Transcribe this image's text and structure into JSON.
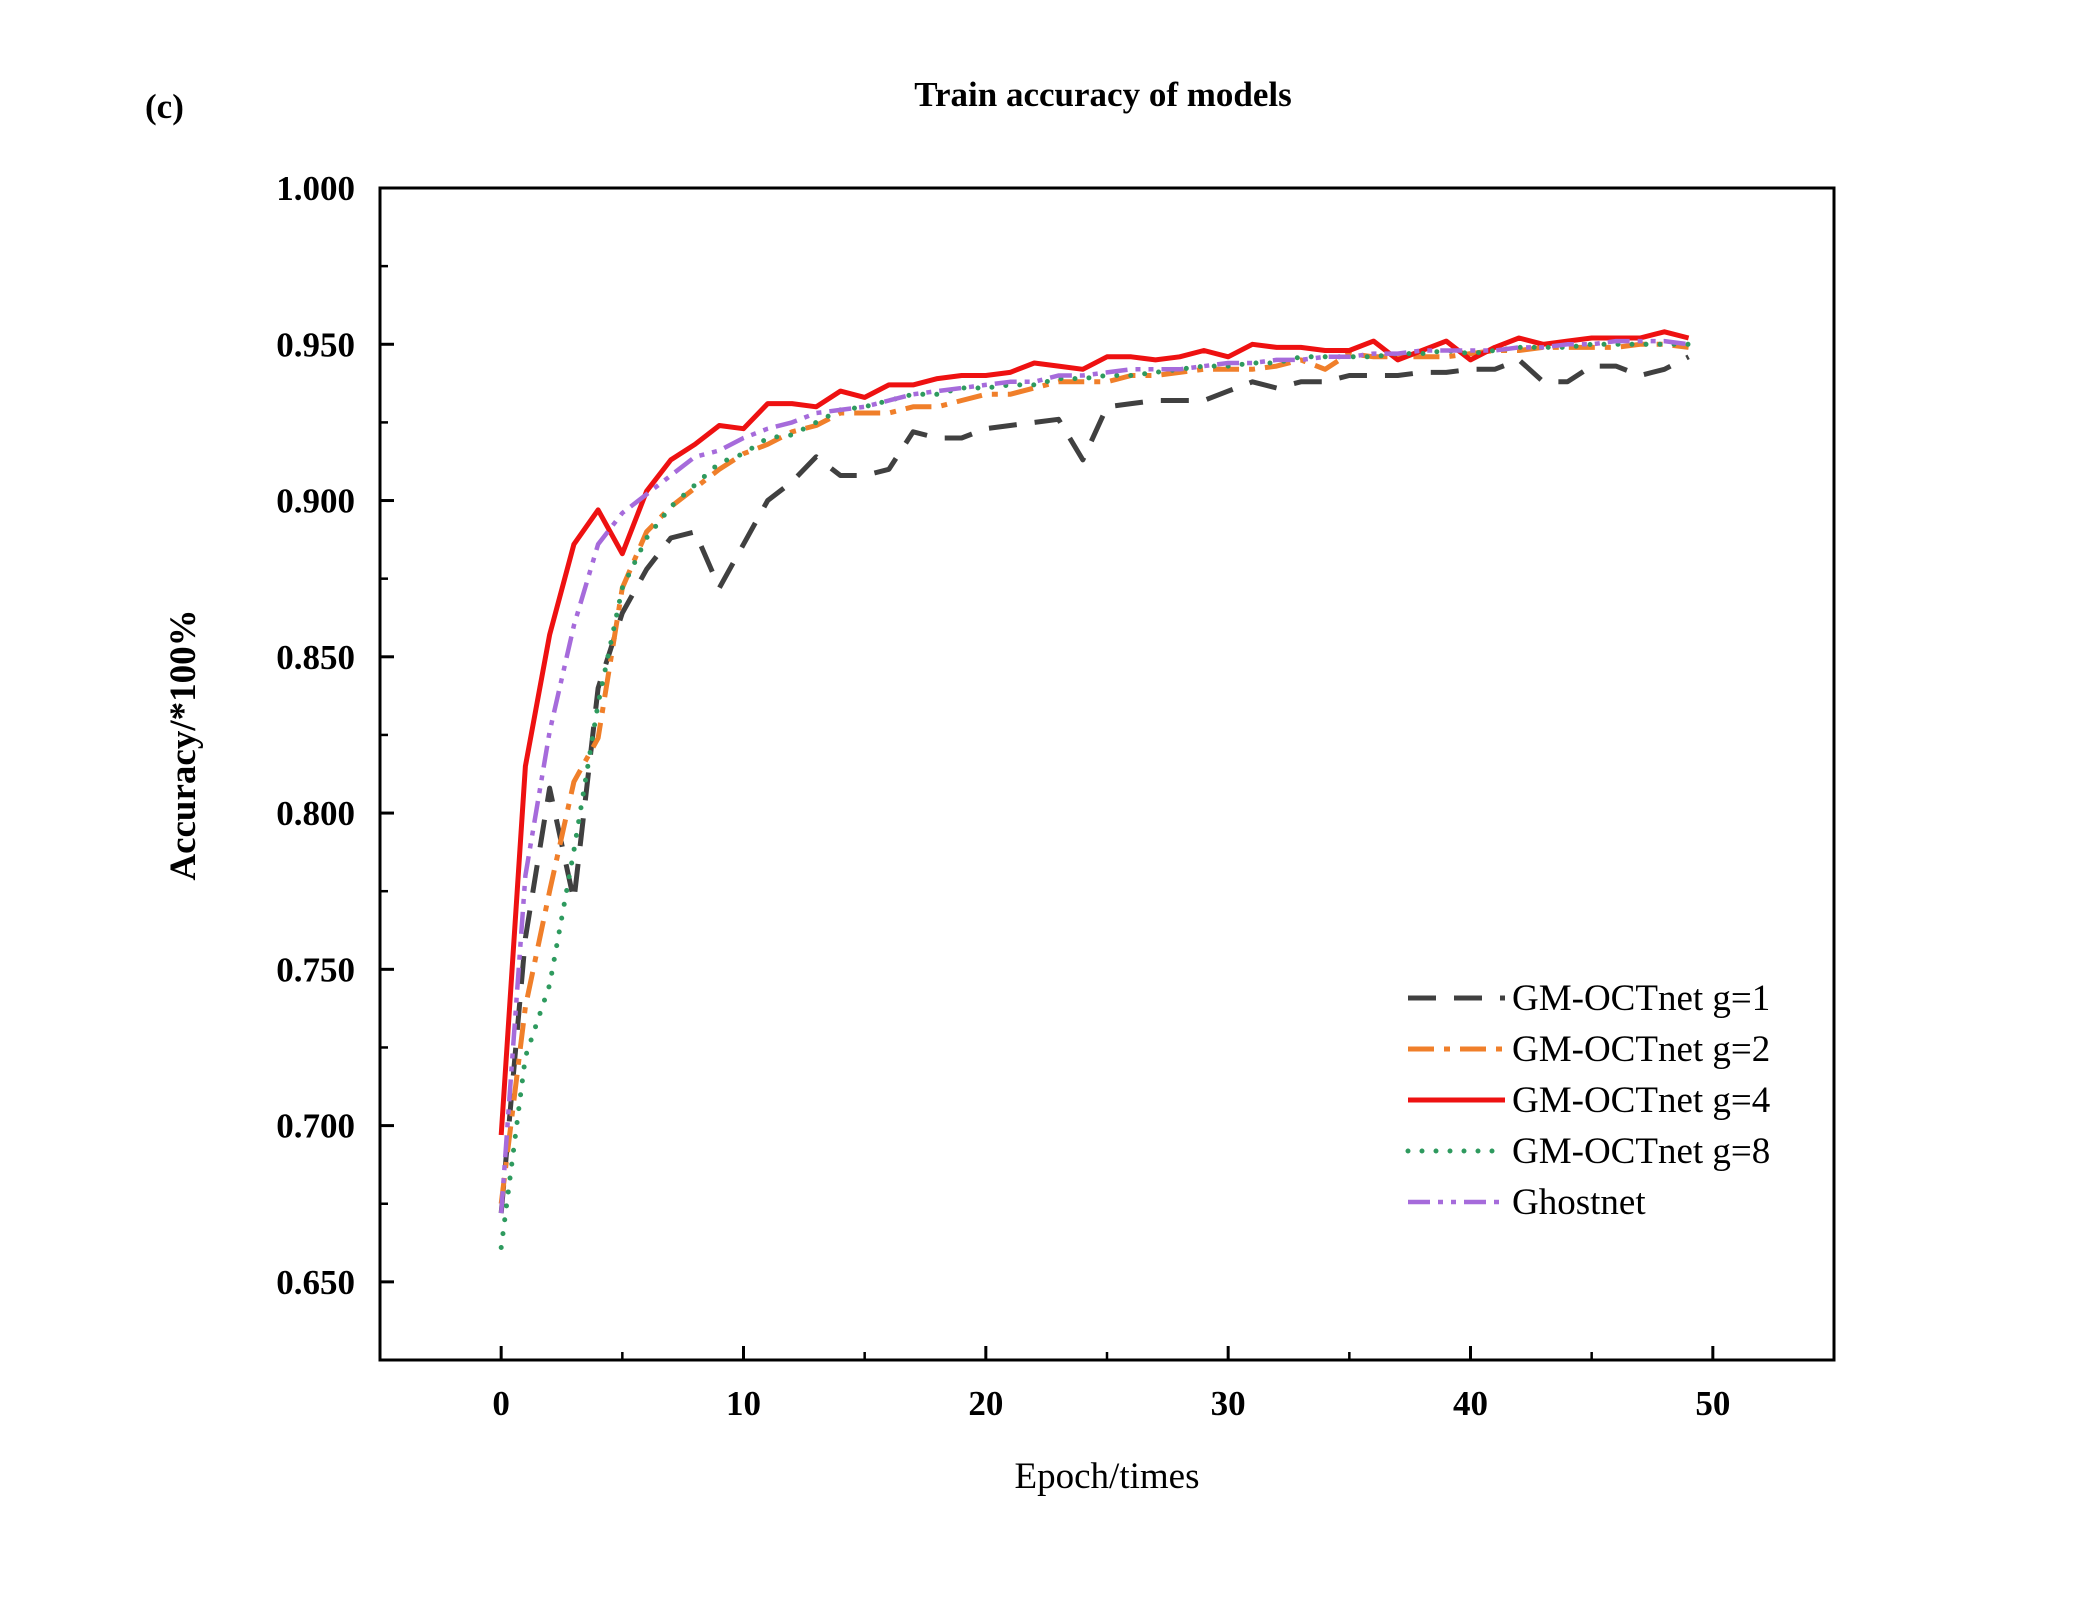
{
  "chart_data": {
    "type": "line",
    "panel_label": "(c)",
    "title": "Train accuracy of models",
    "xlabel": "Epoch/times",
    "ylabel": "Accuracy/*100%",
    "xlim": [
      -5,
      55
    ],
    "ylim": [
      0.625,
      1.0
    ],
    "xticks": [
      0,
      10,
      20,
      30,
      40,
      50
    ],
    "xtick_labels": [
      "0",
      "10",
      "20",
      "30",
      "40",
      "50"
    ],
    "yticks": [
      0.65,
      0.7,
      0.75,
      0.8,
      0.85,
      0.9,
      0.95,
      1.0
    ],
    "ytick_labels": [
      "0.650",
      "0.700",
      "0.750",
      "0.800",
      "0.850",
      "0.900",
      "0.950",
      "1.000"
    ],
    "grid": false,
    "legend_position": "bottom-right",
    "x": [
      0,
      1,
      2,
      3,
      4,
      5,
      6,
      7,
      8,
      9,
      10,
      11,
      12,
      13,
      14,
      15,
      16,
      17,
      18,
      19,
      20,
      21,
      22,
      23,
      24,
      25,
      26,
      27,
      28,
      29,
      30,
      31,
      32,
      33,
      34,
      35,
      36,
      37,
      38,
      39,
      40,
      41,
      42,
      43,
      44,
      45,
      46,
      47,
      48,
      49
    ],
    "series": [
      {
        "name": "GM-OCTnet g=1",
        "color": "#404040",
        "dash": "dashed",
        "values": [
          0.672,
          0.76,
          0.808,
          0.772,
          0.84,
          0.864,
          0.878,
          0.888,
          0.89,
          0.872,
          0.886,
          0.9,
          0.906,
          0.914,
          0.908,
          0.908,
          0.91,
          0.922,
          0.92,
          0.92,
          0.923,
          0.924,
          0.925,
          0.926,
          0.913,
          0.93,
          0.931,
          0.932,
          0.932,
          0.932,
          0.935,
          0.938,
          0.936,
          0.938,
          0.938,
          0.94,
          0.94,
          0.94,
          0.941,
          0.941,
          0.942,
          0.942,
          0.945,
          0.938,
          0.938,
          0.943,
          0.943,
          0.94,
          0.942,
          0.946
        ]
      },
      {
        "name": "GM-OCTnet g=2",
        "color": "#f07f2a",
        "dash": "dashdot",
        "values": [
          0.675,
          0.738,
          0.775,
          0.81,
          0.824,
          0.872,
          0.89,
          0.898,
          0.904,
          0.91,
          0.915,
          0.918,
          0.922,
          0.924,
          0.928,
          0.928,
          0.928,
          0.93,
          0.93,
          0.932,
          0.934,
          0.934,
          0.936,
          0.938,
          0.938,
          0.938,
          0.94,
          0.94,
          0.941,
          0.942,
          0.942,
          0.942,
          0.943,
          0.945,
          0.942,
          0.947,
          0.946,
          0.946,
          0.946,
          0.946,
          0.947,
          0.948,
          0.948,
          0.949,
          0.949,
          0.949,
          0.949,
          0.95,
          0.95,
          0.949
        ]
      },
      {
        "name": "GM-OCTnet g=4",
        "color": "#ee1111",
        "dash": "solid",
        "values": [
          0.697,
          0.815,
          0.857,
          0.886,
          0.897,
          0.883,
          0.903,
          0.913,
          0.918,
          0.924,
          0.923,
          0.931,
          0.931,
          0.93,
          0.935,
          0.933,
          0.937,
          0.937,
          0.939,
          0.94,
          0.94,
          0.941,
          0.944,
          0.943,
          0.942,
          0.946,
          0.946,
          0.945,
          0.946,
          0.948,
          0.946,
          0.95,
          0.949,
          0.949,
          0.948,
          0.948,
          0.951,
          0.945,
          0.948,
          0.951,
          0.945,
          0.949,
          0.952,
          0.95,
          0.951,
          0.952,
          0.952,
          0.952,
          0.954,
          0.952
        ]
      },
      {
        "name": "GM-OCTnet g=8",
        "color": "#2e9a5e",
        "dash": "dotted",
        "values": [
          0.661,
          0.722,
          0.745,
          0.788,
          0.835,
          0.872,
          0.888,
          0.898,
          0.905,
          0.912,
          0.915,
          0.92,
          0.921,
          0.925,
          0.929,
          0.93,
          0.932,
          0.934,
          0.934,
          0.936,
          0.936,
          0.937,
          0.937,
          0.939,
          0.939,
          0.94,
          0.94,
          0.941,
          0.942,
          0.943,
          0.943,
          0.944,
          0.944,
          0.946,
          0.946,
          0.946,
          0.946,
          0.947,
          0.947,
          0.948,
          0.947,
          0.948,
          0.949,
          0.949,
          0.949,
          0.95,
          0.95,
          0.95,
          0.95,
          0.95
        ]
      },
      {
        "name": "Ghostnet",
        "color": "#a66bdb",
        "dash": "dashdotdot",
        "values": [
          0.672,
          0.78,
          0.826,
          0.86,
          0.886,
          0.896,
          0.902,
          0.908,
          0.914,
          0.916,
          0.92,
          0.923,
          0.925,
          0.928,
          0.929,
          0.93,
          0.932,
          0.934,
          0.935,
          0.936,
          0.937,
          0.938,
          0.938,
          0.94,
          0.94,
          0.941,
          0.942,
          0.942,
          0.942,
          0.943,
          0.944,
          0.944,
          0.945,
          0.945,
          0.946,
          0.946,
          0.947,
          0.947,
          0.948,
          0.948,
          0.948,
          0.948,
          0.949,
          0.949,
          0.95,
          0.95,
          0.951,
          0.951,
          0.951,
          0.95
        ]
      }
    ]
  }
}
